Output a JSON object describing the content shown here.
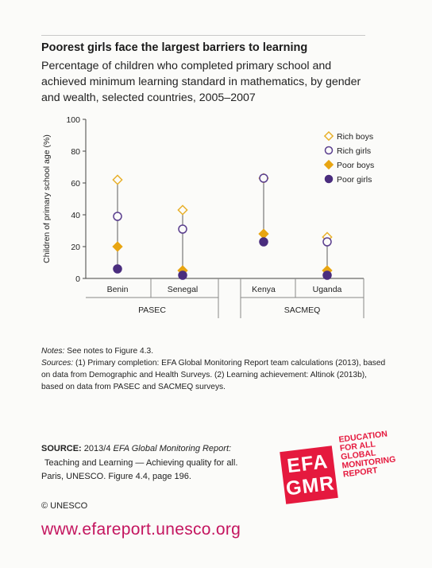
{
  "title": "Poorest girls face the largest barriers to learning",
  "subtitle": "Percentage of children who completed primary school and achieved minimum learning standard in mathematics, by gender and wealth, selected countries, 2005–2007",
  "chart_data": {
    "type": "scatter",
    "ylabel": "Children of primary school age (%)",
    "ylim": [
      0,
      100
    ],
    "yticks": [
      0,
      20,
      40,
      60,
      80,
      100
    ],
    "categories": [
      "Benin",
      "Senegal",
      "Kenya",
      "Uganda"
    ],
    "groups": [
      {
        "label": "PASEC",
        "categories": [
          "Benin",
          "Senegal"
        ]
      },
      {
        "label": "SACMEQ",
        "categories": [
          "Kenya",
          "Uganda"
        ]
      }
    ],
    "series": [
      {
        "name": "Rich boys",
        "marker": "diamond-open",
        "color": "#e8b02a",
        "values": [
          62,
          43,
          63,
          26
        ]
      },
      {
        "name": "Rich girls",
        "marker": "circle-open",
        "color": "#5a3e8e",
        "values": [
          39,
          31,
          63,
          23
        ]
      },
      {
        "name": "Poor boys",
        "marker": "diamond-filled",
        "color": "#e8a512",
        "values": [
          20,
          5,
          28,
          5
        ]
      },
      {
        "name": "Poor girls",
        "marker": "circle-filled",
        "color": "#4a2d7e",
        "values": [
          6,
          2,
          23,
          2
        ]
      }
    ],
    "legend_position": "top-right"
  },
  "notes": {
    "notes_label": "Notes:",
    "notes_text": " See notes to Figure 4.3.",
    "sources_label": "Sources:",
    "sources_text": " (1) Primary completion: EFA Global Monitoring Report team calculations (2013), based on data from Demographic and Health Surveys. (2) Learning achievement: Altinok (2013b), based on data from PASEC and SACMEQ surveys."
  },
  "source": {
    "lead": "SOURCE:",
    "line1_plain": " 2013/4 ",
    "line1_italic": "EFA Global Monitoring Report:",
    "line2": "Teaching and Learning — Achieving quality for all.",
    "line3": "Paris, UNESCO. Figure 4.4, page 196."
  },
  "copyright": "© UNESCO",
  "url": "www.efareport.unesco.org",
  "logo": {
    "mark_top": "EFA",
    "mark_bottom": "GMR",
    "text_lines": [
      "EDUCATION",
      "FOR ALL",
      "GLOBAL",
      "MONITORING",
      "REPORT"
    ],
    "color": "#e5193e"
  }
}
